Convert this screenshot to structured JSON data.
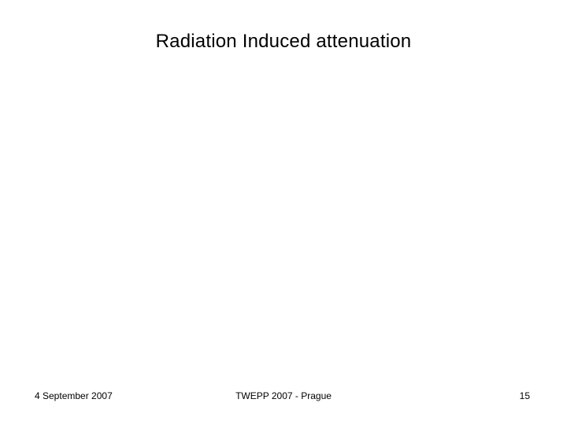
{
  "slide": {
    "title": "Radiation Induced attenuation",
    "footer": {
      "date": "4 September 2007",
      "event": "TWEPP 2007 - Prague",
      "page_number": "15"
    }
  }
}
